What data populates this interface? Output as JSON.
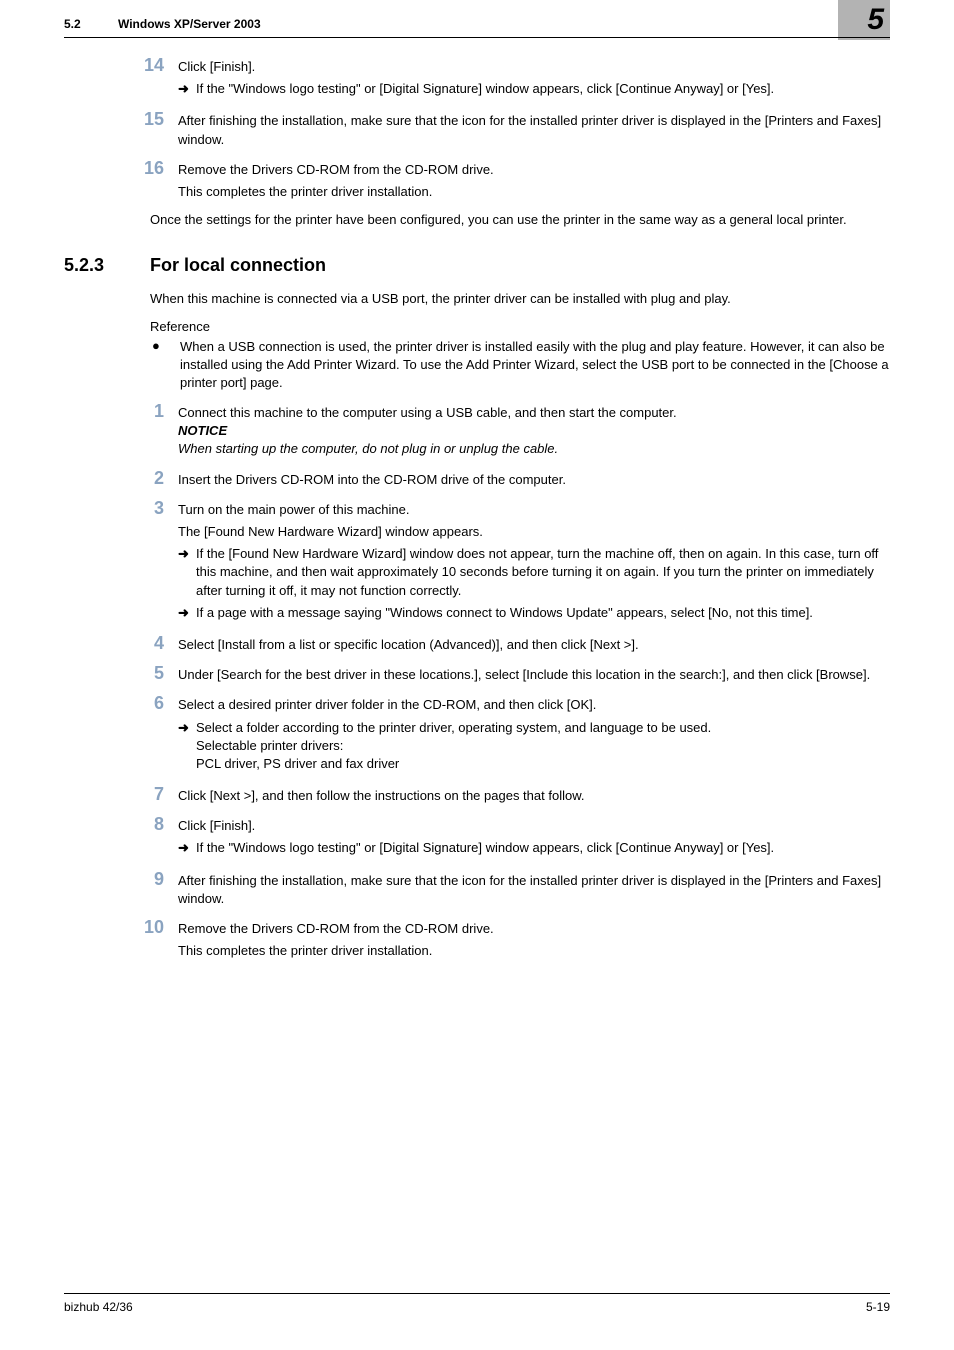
{
  "header": {
    "section_num": "5.2",
    "section_title": "Windows XP/Server 2003",
    "chapter": "5"
  },
  "top_steps": {
    "s14": {
      "text": "Click [Finish].",
      "arrow1": "If the \"Windows logo testing\" or [Digital Signature] window appears, click [Continue Anyway] or [Yes]."
    },
    "s15": {
      "text": "After finishing the installation, make sure that the icon for the installed printer driver is displayed in the [Printers and Faxes] window."
    },
    "s16": {
      "text": "Remove the Drivers CD-ROM from the CD-ROM drive.",
      "after": "This completes the printer driver installation."
    }
  },
  "after_top": "Once the settings for the printer have been configured, you can use the printer in the same way as a general local printer.",
  "h2": {
    "num": "5.2.3",
    "title": "For local connection"
  },
  "intro": "When this machine is connected via a USB port, the printer driver can be installed with plug and play.",
  "reference_label": "Reference",
  "reference_bullet": "When a USB connection is used, the printer driver is installed easily with the plug and play feature. However, it can also be installed using the Add Printer Wizard. To use the Add Printer Wizard, select the USB port to be connected in the [Choose a printer port] page.",
  "steps": {
    "s1": {
      "text": "Connect this machine to the computer using a USB cable, and then start the computer.",
      "notice_label": "NOTICE",
      "notice_body": "When starting up the computer, do not plug in or unplug the cable."
    },
    "s2": {
      "text": "Insert the Drivers CD-ROM into the CD-ROM drive of the computer."
    },
    "s3": {
      "text": "Turn on the main power of this machine.",
      "after": "The [Found New Hardware Wizard] window appears.",
      "arrow1": "If the [Found New Hardware Wizard] window does not appear, turn the machine off, then on again. In this case, turn off this machine, and then wait approximately 10 seconds before turning it on again. If you turn the printer on immediately after turning it off, it may not function correctly.",
      "arrow2": "If a page with a message saying \"Windows connect to Windows Update\" appears, select [No, not this time]."
    },
    "s4": {
      "text": "Select [Install from a list or specific location (Advanced)], and then click [Next >]."
    },
    "s5": {
      "text": "Under [Search for the best driver in these locations.], select [Include this location in the search:], and then click [Browse]."
    },
    "s6": {
      "text": "Select a desired printer driver folder in the CD-ROM, and then click [OK].",
      "arrow1_l1": "Select a folder according to the printer driver, operating system, and language to be used.",
      "arrow1_l2": "Selectable printer drivers:",
      "arrow1_l3": "PCL driver, PS driver and fax driver"
    },
    "s7": {
      "text": "Click [Next >], and then follow the instructions on the pages that follow."
    },
    "s8": {
      "text": "Click [Finish].",
      "arrow1": "If the \"Windows logo testing\" or [Digital Signature] window appears, click [Continue Anyway] or [Yes]."
    },
    "s9": {
      "text": "After finishing the installation, make sure that the icon for the installed printer driver is displayed in the [Printers and Faxes] window."
    },
    "s10": {
      "text": "Remove the Drivers CD-ROM from the CD-ROM drive.",
      "after": "This completes the printer driver installation."
    }
  },
  "footer": {
    "left": "bizhub 42/36",
    "right": "5-19"
  },
  "step_nums": {
    "n14": "14",
    "n15": "15",
    "n16": "16",
    "n1": "1",
    "n2": "2",
    "n3": "3",
    "n4": "4",
    "n5": "5",
    "n6": "6",
    "n7": "7",
    "n8": "8",
    "n9": "9",
    "n10": "10"
  },
  "glyphs": {
    "arrow": "➜",
    "bullet": "●"
  }
}
